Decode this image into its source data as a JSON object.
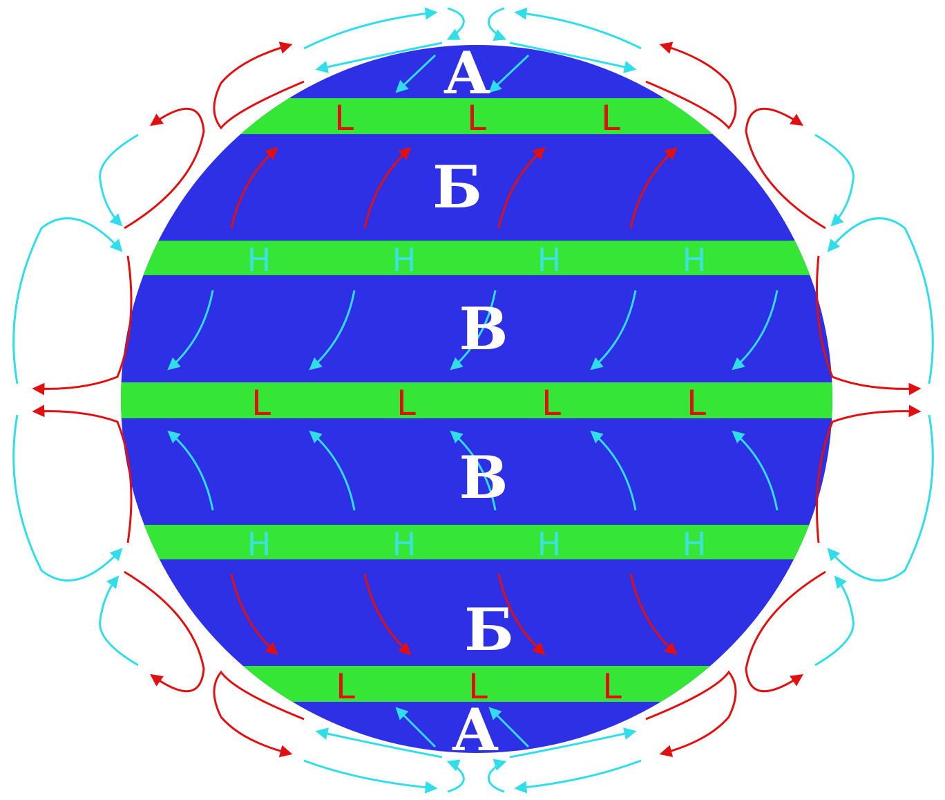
{
  "colors": {
    "globe": "#2e30e6",
    "belt": "#36e636",
    "warm_flow": "#e01010",
    "cold_flow": "#30dde8",
    "label": "#ffffff"
  },
  "zones": {
    "top_polar": "А",
    "top_temperate": "Б",
    "top_tropical": "В",
    "bottom_tropical": "В",
    "bottom_temperate": "Б",
    "bottom_polar": "А"
  },
  "belt_marks": {
    "low": "L",
    "high": "H"
  }
}
